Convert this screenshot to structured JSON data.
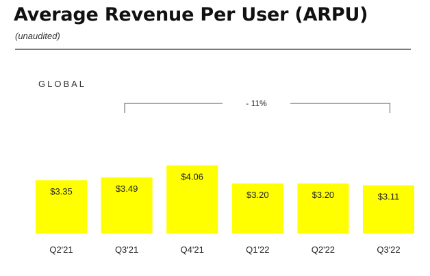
{
  "header": {
    "title": "Average Revenue Per User (ARPU)",
    "subtitle": "(unaudited)"
  },
  "section_label": "GLOBAL",
  "chart_data": {
    "type": "bar",
    "categories": [
      "Q2'21",
      "Q3'21",
      "Q4'21",
      "Q1'22",
      "Q2'22",
      "Q3'22"
    ],
    "values": [
      3.35,
      3.49,
      4.06,
      3.2,
      3.2,
      3.11
    ],
    "data_labels": [
      "$3.35",
      "$3.49",
      "$4.06",
      "$3.20",
      "$3.20",
      "$3.11"
    ],
    "bar_color": "#ffff00",
    "grid": false,
    "annotation": {
      "text": "- 11%",
      "from_category": "Q3'21",
      "to_category": "Q3'22"
    }
  }
}
